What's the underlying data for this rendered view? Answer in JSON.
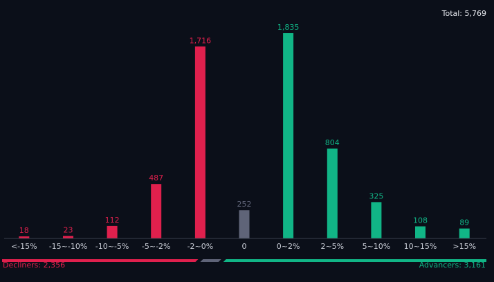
{
  "total_label": "Total: 5,769",
  "decliners_label": "Decliners: 2,356",
  "advancers_label": "Advancers: 3,161",
  "colors": {
    "background": "#0b0f19",
    "decline": "#e0204d",
    "neutral": "#5f6478",
    "advance": "#11b586",
    "axis": "#3a3f4d",
    "tick_text": "#c9cdd6"
  },
  "breadth_bar": {
    "decliners": 2356,
    "unchanged": 252,
    "advancers": 3161
  },
  "chart_data": {
    "type": "bar",
    "title": "",
    "xlabel": "",
    "ylabel": "",
    "grid": false,
    "legend": "none",
    "categories": [
      "<-15%",
      "-15~-10%",
      "-10~-5%",
      "-5~-2%",
      "-2~0%",
      "0",
      "0~2%",
      "2~5%",
      "5~10%",
      "10~15%",
      ">15%"
    ],
    "values": [
      18,
      23,
      112,
      487,
      1716,
      252,
      1835,
      804,
      325,
      108,
      89
    ],
    "data_labels": [
      "18",
      "23",
      "112",
      "487",
      "1,716",
      "252",
      "1,835",
      "804",
      "325",
      "108",
      "89"
    ],
    "bar_colors": [
      "decline",
      "decline",
      "decline",
      "decline",
      "decline",
      "neutral",
      "advance",
      "advance",
      "advance",
      "advance",
      "advance"
    ],
    "ylim": [
      0,
      1835
    ]
  }
}
